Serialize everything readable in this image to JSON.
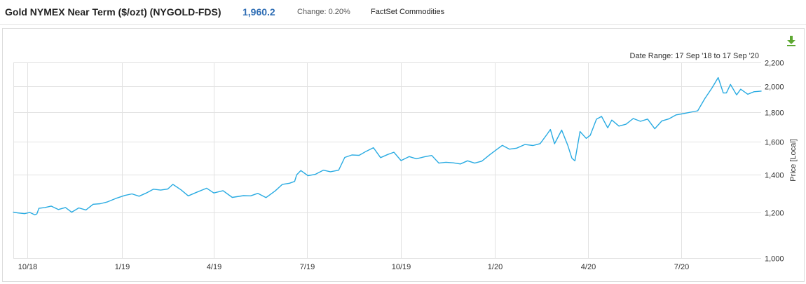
{
  "header": {
    "title": "Gold NYMEX Near Term ($/ozt) (NYGOLD-FDS)",
    "price": "1,960.2",
    "change_label": "Change:",
    "change_value": "0.20%",
    "source": "FactSet Commodities"
  },
  "toolbar": {
    "download_icon": "download-arrow-icon"
  },
  "date_range": {
    "label": "Date Range:",
    "start": "17 Sep '18",
    "separator": "to",
    "end": "17 Sep '20"
  },
  "colors": {
    "line": "#29abe2",
    "grid": "#e2e2e2",
    "price": "#2e6db4",
    "download": "#5da832"
  },
  "chart_data": {
    "type": "line",
    "title": "",
    "xlabel": "",
    "ylabel": "Price [Local]",
    "scale": "log",
    "ylim": [
      1000,
      2200
    ],
    "yticks": [
      1000,
      1200,
      1400,
      1600,
      1800,
      2000,
      2200
    ],
    "ytick_labels": [
      "1,000",
      "1,200",
      "1,400",
      "1,600",
      "1,800",
      "2,000",
      "2,200"
    ],
    "xlim": [
      "2018-09-17",
      "2020-09-17"
    ],
    "xticks": [
      "2018-10-01",
      "2019-01-01",
      "2019-04-01",
      "2019-07-01",
      "2019-10-01",
      "2020-01-01",
      "2020-04-01",
      "2020-07-01"
    ],
    "xtick_labels": [
      "10/18",
      "1/19",
      "4/19",
      "7/19",
      "10/19",
      "1/20",
      "4/20",
      "7/20"
    ],
    "grid": true,
    "series": [
      {
        "values": [
          [
            "2018-09-17",
            1203
          ],
          [
            "2018-09-21",
            1200
          ],
          [
            "2018-09-28",
            1196
          ],
          [
            "2018-10-03",
            1202
          ],
          [
            "2018-10-08",
            1190
          ],
          [
            "2018-10-10",
            1195
          ],
          [
            "2018-10-12",
            1222
          ],
          [
            "2018-10-18",
            1226
          ],
          [
            "2018-10-24",
            1233
          ],
          [
            "2018-10-31",
            1216
          ],
          [
            "2018-11-07",
            1226
          ],
          [
            "2018-11-13",
            1203
          ],
          [
            "2018-11-20",
            1224
          ],
          [
            "2018-11-27",
            1214
          ],
          [
            "2018-12-04",
            1242
          ],
          [
            "2018-12-11",
            1245
          ],
          [
            "2018-12-18",
            1254
          ],
          [
            "2018-12-26",
            1271
          ],
          [
            "2019-01-04",
            1287
          ],
          [
            "2019-01-11",
            1295
          ],
          [
            "2019-01-18",
            1283
          ],
          [
            "2019-01-25",
            1300
          ],
          [
            "2019-02-01",
            1320
          ],
          [
            "2019-02-08",
            1315
          ],
          [
            "2019-02-15",
            1321
          ],
          [
            "2019-02-20",
            1346
          ],
          [
            "2019-02-28",
            1316
          ],
          [
            "2019-03-07",
            1285
          ],
          [
            "2019-03-15",
            1303
          ],
          [
            "2019-03-25",
            1325
          ],
          [
            "2019-04-01",
            1300
          ],
          [
            "2019-04-10",
            1312
          ],
          [
            "2019-04-19",
            1277
          ],
          [
            "2019-04-30",
            1286
          ],
          [
            "2019-05-07",
            1285
          ],
          [
            "2019-05-14",
            1298
          ],
          [
            "2019-05-22",
            1276
          ],
          [
            "2019-05-31",
            1311
          ],
          [
            "2019-06-07",
            1346
          ],
          [
            "2019-06-14",
            1352
          ],
          [
            "2019-06-19",
            1362
          ],
          [
            "2019-06-21",
            1399
          ],
          [
            "2019-06-25",
            1423
          ],
          [
            "2019-07-02",
            1394
          ],
          [
            "2019-07-09",
            1401
          ],
          [
            "2019-07-17",
            1425
          ],
          [
            "2019-07-24",
            1416
          ],
          [
            "2019-08-01",
            1425
          ],
          [
            "2019-08-07",
            1500
          ],
          [
            "2019-08-14",
            1515
          ],
          [
            "2019-08-21",
            1513
          ],
          [
            "2019-08-28",
            1538
          ],
          [
            "2019-09-04",
            1560
          ],
          [
            "2019-09-11",
            1499
          ],
          [
            "2019-09-18",
            1518
          ],
          [
            "2019-09-24",
            1532
          ],
          [
            "2019-10-01",
            1481
          ],
          [
            "2019-10-09",
            1505
          ],
          [
            "2019-10-16",
            1492
          ],
          [
            "2019-10-24",
            1504
          ],
          [
            "2019-10-31",
            1512
          ],
          [
            "2019-11-07",
            1466
          ],
          [
            "2019-11-14",
            1471
          ],
          [
            "2019-11-21",
            1468
          ],
          [
            "2019-11-28",
            1461
          ],
          [
            "2019-12-05",
            1480
          ],
          [
            "2019-12-12",
            1466
          ],
          [
            "2019-12-19",
            1478
          ],
          [
            "2019-12-27",
            1518
          ],
          [
            "2020-01-03",
            1551
          ],
          [
            "2020-01-08",
            1575
          ],
          [
            "2020-01-15",
            1551
          ],
          [
            "2020-01-22",
            1557
          ],
          [
            "2020-01-30",
            1580
          ],
          [
            "2020-02-07",
            1574
          ],
          [
            "2020-02-14",
            1586
          ],
          [
            "2020-02-21",
            1649
          ],
          [
            "2020-02-24",
            1679
          ],
          [
            "2020-02-28",
            1585
          ],
          [
            "2020-03-06",
            1675
          ],
          [
            "2020-03-12",
            1575
          ],
          [
            "2020-03-16",
            1495
          ],
          [
            "2020-03-19",
            1480
          ],
          [
            "2020-03-24",
            1665
          ],
          [
            "2020-03-30",
            1620
          ],
          [
            "2020-04-03",
            1640
          ],
          [
            "2020-04-09",
            1750
          ],
          [
            "2020-04-14",
            1770
          ],
          [
            "2020-04-20",
            1690
          ],
          [
            "2020-04-24",
            1744
          ],
          [
            "2020-05-01",
            1702
          ],
          [
            "2020-05-08",
            1715
          ],
          [
            "2020-05-15",
            1755
          ],
          [
            "2020-05-22",
            1735
          ],
          [
            "2020-05-29",
            1751
          ],
          [
            "2020-06-05",
            1684
          ],
          [
            "2020-06-12",
            1738
          ],
          [
            "2020-06-19",
            1753
          ],
          [
            "2020-06-26",
            1781
          ],
          [
            "2020-07-03",
            1790
          ],
          [
            "2020-07-10",
            1800
          ],
          [
            "2020-07-17",
            1810
          ],
          [
            "2020-07-24",
            1902
          ],
          [
            "2020-07-31",
            1985
          ],
          [
            "2020-08-06",
            2070
          ],
          [
            "2020-08-11",
            1945
          ],
          [
            "2020-08-14",
            1945
          ],
          [
            "2020-08-18",
            2013
          ],
          [
            "2020-08-24",
            1930
          ],
          [
            "2020-08-28",
            1975
          ],
          [
            "2020-09-04",
            1935
          ],
          [
            "2020-09-10",
            1955
          ],
          [
            "2020-09-17",
            1960
          ]
        ]
      }
    ]
  }
}
